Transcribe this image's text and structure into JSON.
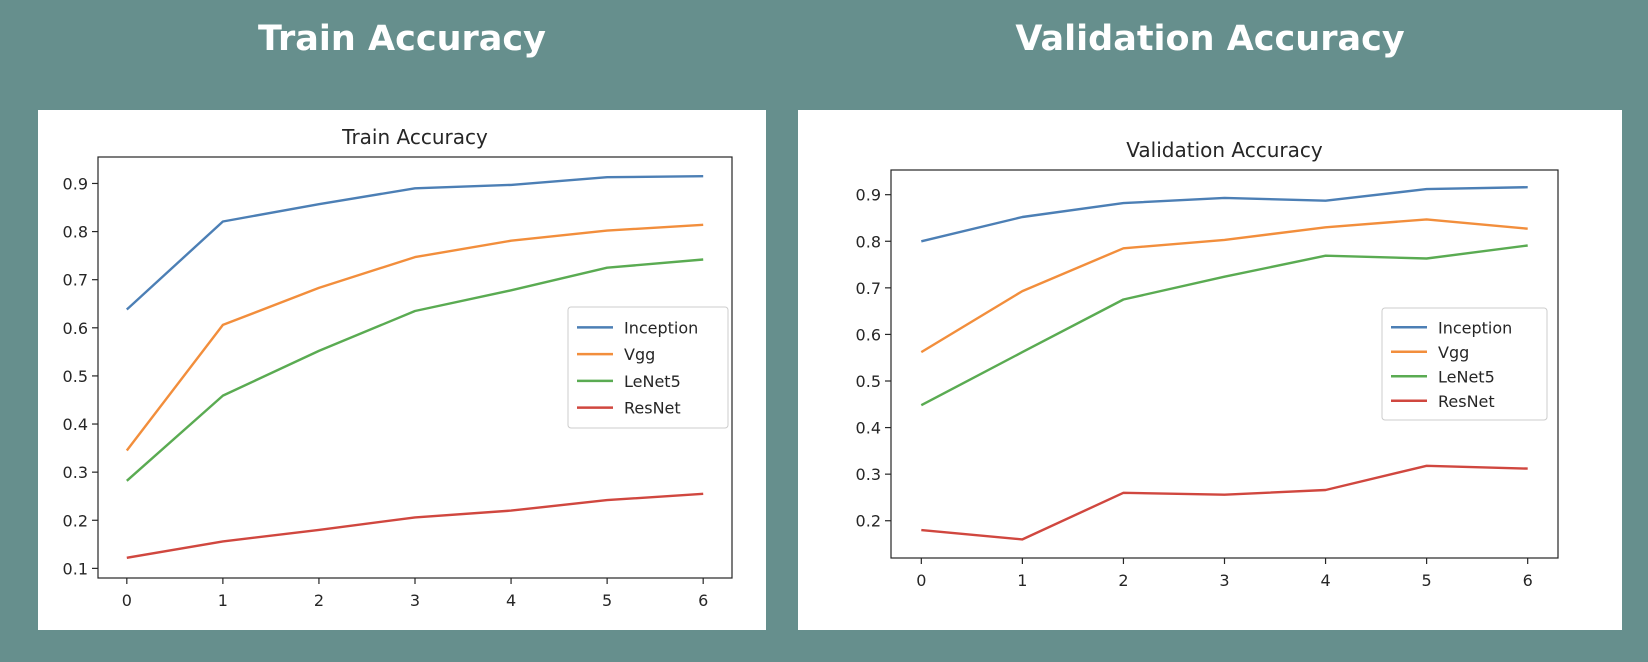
{
  "headings": {
    "left": "Train Accuracy",
    "right": "Validation Accuracy"
  },
  "colors": {
    "background": "#668f8d",
    "Inception": "#4c7fb5",
    "Vgg": "#f28e3c",
    "LeNet5": "#5aab52",
    "ResNet": "#d0473f"
  },
  "chart_data": [
    {
      "type": "line",
      "title": "Train Accuracy",
      "xlabel": "",
      "ylabel": "",
      "x": [
        0,
        1,
        2,
        3,
        4,
        5,
        6
      ],
      "xticks": [
        "0",
        "1",
        "2",
        "3",
        "4",
        "5",
        "6"
      ],
      "yticks": [
        "0.1",
        "0.2",
        "0.3",
        "0.4",
        "0.5",
        "0.6",
        "0.7",
        "0.8",
        "0.9"
      ],
      "ylim": [
        0.08,
        0.955
      ],
      "xlim": [
        -0.3,
        6.3
      ],
      "legend_position": "center-right",
      "grid": false,
      "series": [
        {
          "name": "Inception",
          "values": [
            0.638,
            0.821,
            0.857,
            0.89,
            0.897,
            0.913,
            0.915
          ]
        },
        {
          "name": "Vgg",
          "values": [
            0.345,
            0.606,
            0.683,
            0.747,
            0.781,
            0.802,
            0.814
          ]
        },
        {
          "name": "LeNet5",
          "values": [
            0.282,
            0.459,
            0.552,
            0.635,
            0.678,
            0.725,
            0.742
          ]
        },
        {
          "name": "ResNet",
          "values": [
            0.122,
            0.156,
            0.18,
            0.206,
            0.22,
            0.242,
            0.255
          ]
        }
      ]
    },
    {
      "type": "line",
      "title": "Validation Accuracy",
      "xlabel": "",
      "ylabel": "",
      "x": [
        0,
        1,
        2,
        3,
        4,
        5,
        6
      ],
      "xticks": [
        "0",
        "1",
        "2",
        "3",
        "4",
        "5",
        "6"
      ],
      "yticks": [
        "0.2",
        "0.3",
        "0.4",
        "0.5",
        "0.6",
        "0.7",
        "0.8",
        "0.9"
      ],
      "ylim": [
        0.12,
        0.953
      ],
      "xlim": [
        -0.3,
        6.3
      ],
      "legend_position": "center-right",
      "grid": false,
      "series": [
        {
          "name": "Inception",
          "values": [
            0.8,
            0.852,
            0.882,
            0.893,
            0.887,
            0.912,
            0.916
          ]
        },
        {
          "name": "Vgg",
          "values": [
            0.562,
            0.693,
            0.785,
            0.803,
            0.83,
            0.847,
            0.827
          ]
        },
        {
          "name": "LeNet5",
          "values": [
            0.448,
            0.562,
            0.675,
            0.724,
            0.769,
            0.763,
            0.791
          ]
        },
        {
          "name": "ResNet",
          "values": [
            0.18,
            0.16,
            0.26,
            0.256,
            0.266,
            0.318,
            0.312
          ]
        }
      ]
    }
  ]
}
